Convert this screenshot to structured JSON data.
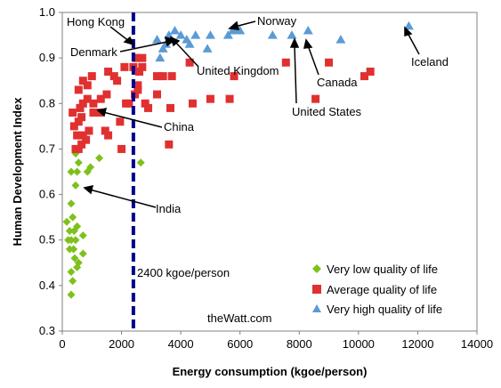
{
  "chart_data": {
    "type": "scatter",
    "xlabel": "Energy consumption (kgoe/person)",
    "ylabel": "Human Development Index",
    "xlim": [
      0,
      14000
    ],
    "ylim": [
      0.3,
      1.0
    ],
    "x_ticks": [
      "0",
      "2000",
      "4000",
      "6000",
      "8000",
      "10000",
      "12000",
      "14000"
    ],
    "y_ticks": [
      "0.3",
      "0.4",
      "0.5",
      "0.6",
      "0.7",
      "0.8",
      "0.9",
      "1.0"
    ],
    "x_tick_values": [
      0,
      2000,
      4000,
      6000,
      8000,
      10000,
      12000,
      14000
    ],
    "y_tick_values": [
      0.3,
      0.4,
      0.5,
      0.6,
      0.7,
      0.8,
      0.9,
      1.0
    ],
    "grid": false,
    "legend_position": "bottom-right",
    "threshold": {
      "x": 2400,
      "label": "2400 kgoe/person",
      "color": "#00008B"
    },
    "watermark": "theWatt.com",
    "series": [
      {
        "name": "Very low quality of life",
        "marker": "diamond",
        "color": "#7DC11A",
        "points": [
          [
            300,
            0.38
          ],
          [
            350,
            0.41
          ],
          [
            300,
            0.43
          ],
          [
            500,
            0.44
          ],
          [
            550,
            0.45
          ],
          [
            700,
            0.47
          ],
          [
            420,
            0.46
          ],
          [
            380,
            0.48
          ],
          [
            250,
            0.48
          ],
          [
            200,
            0.5
          ],
          [
            300,
            0.5
          ],
          [
            450,
            0.5
          ],
          [
            700,
            0.51
          ],
          [
            250,
            0.52
          ],
          [
            400,
            0.52
          ],
          [
            500,
            0.53
          ],
          [
            150,
            0.54
          ],
          [
            350,
            0.55
          ],
          [
            300,
            0.58
          ],
          [
            450,
            0.62
          ],
          [
            300,
            0.65
          ],
          [
            500,
            0.65
          ],
          [
            850,
            0.65
          ],
          [
            950,
            0.66
          ],
          [
            550,
            0.67
          ],
          [
            1250,
            0.68
          ],
          [
            450,
            0.69
          ],
          [
            2650,
            0.67
          ]
        ]
      },
      {
        "name": "Average quality of life",
        "marker": "square",
        "color": "#E03030",
        "points": [
          [
            450,
            0.7
          ],
          [
            550,
            0.7
          ],
          [
            650,
            0.71
          ],
          [
            800,
            0.72
          ],
          [
            500,
            0.73
          ],
          [
            700,
            0.73
          ],
          [
            900,
            0.74
          ],
          [
            400,
            0.75
          ],
          [
            1450,
            0.74
          ],
          [
            1550,
            0.73
          ],
          [
            1950,
            0.76
          ],
          [
            2000,
            0.7
          ],
          [
            550,
            0.76
          ],
          [
            650,
            0.77
          ],
          [
            350,
            0.78
          ],
          [
            1050,
            0.78
          ],
          [
            1250,
            0.78
          ],
          [
            600,
            0.79
          ],
          [
            700,
            0.8
          ],
          [
            1050,
            0.8
          ],
          [
            1300,
            0.81
          ],
          [
            850,
            0.81
          ],
          [
            550,
            0.83
          ],
          [
            850,
            0.84
          ],
          [
            700,
            0.85
          ],
          [
            1000,
            0.86
          ],
          [
            1550,
            0.87
          ],
          [
            1750,
            0.86
          ],
          [
            1850,
            0.85
          ],
          [
            2150,
            0.8
          ],
          [
            1500,
            0.82
          ],
          [
            2550,
            0.84
          ],
          [
            2400,
            0.88
          ],
          [
            2600,
            0.87
          ],
          [
            2700,
            0.88
          ],
          [
            2700,
            0.9
          ],
          [
            2500,
            0.9
          ],
          [
            2100,
            0.88
          ],
          [
            2450,
            0.82
          ],
          [
            2550,
            0.83
          ],
          [
            2800,
            0.8
          ],
          [
            2250,
            0.8
          ],
          [
            2900,
            0.79
          ],
          [
            3200,
            0.82
          ],
          [
            3200,
            0.86
          ],
          [
            3400,
            0.86
          ],
          [
            3700,
            0.86
          ],
          [
            3600,
            0.71
          ],
          [
            3650,
            0.79
          ],
          [
            4300,
            0.89
          ],
          [
            4400,
            0.8
          ],
          [
            5000,
            0.81
          ],
          [
            5650,
            0.81
          ],
          [
            5800,
            0.86
          ],
          [
            7550,
            0.89
          ],
          [
            8550,
            0.81
          ],
          [
            9000,
            0.89
          ],
          [
            10200,
            0.86
          ],
          [
            10400,
            0.87
          ]
        ]
      },
      {
        "name": "Very high quality of life",
        "marker": "triangle",
        "color": "#5B9BD5",
        "points": [
          [
            3300,
            0.9
          ],
          [
            3400,
            0.92
          ],
          [
            3500,
            0.93
          ],
          [
            3200,
            0.94
          ],
          [
            3600,
            0.95
          ],
          [
            3800,
            0.96
          ],
          [
            4000,
            0.95
          ],
          [
            4200,
            0.94
          ],
          [
            4300,
            0.93
          ],
          [
            4500,
            0.95
          ],
          [
            4900,
            0.92
          ],
          [
            5000,
            0.95
          ],
          [
            5600,
            0.95
          ],
          [
            5750,
            0.96
          ],
          [
            5850,
            0.96
          ],
          [
            6000,
            0.96
          ],
          [
            7100,
            0.95
          ],
          [
            7750,
            0.95
          ],
          [
            8300,
            0.96
          ],
          [
            9400,
            0.94
          ],
          [
            11700,
            0.97
          ]
        ]
      }
    ],
    "annotations": [
      {
        "label": "Hong Kong",
        "x": 2400,
        "y": 0.932
      },
      {
        "label": "Denmark",
        "x": 3850,
        "y": 0.95
      },
      {
        "label": "Norway",
        "x": 5900,
        "y": 0.963
      },
      {
        "label": "United Kingdom",
        "x": 3850,
        "y": 0.946
      },
      {
        "label": "China",
        "x": 1250,
        "y": 0.78
      },
      {
        "label": "India",
        "x": 750,
        "y": 0.62
      },
      {
        "label": "Canada",
        "x": 8300,
        "y": 0.96
      },
      {
        "label": "United States",
        "x": 7750,
        "y": 0.95
      },
      {
        "label": "Iceland",
        "x": 11700,
        "y": 0.97
      }
    ]
  }
}
